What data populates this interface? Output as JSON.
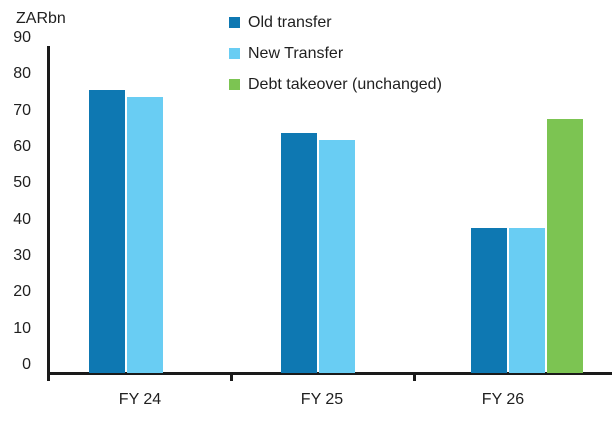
{
  "chart_data": {
    "type": "bar",
    "title": "",
    "ylabel": "ZARbn",
    "xlabel": "",
    "categories": [
      "FY 24",
      "FY 25",
      "FY 26"
    ],
    "series": [
      {
        "name": "Old transfer",
        "color": "#0e78b2",
        "values": [
          78,
          66,
          40
        ]
      },
      {
        "name": "New Transfer",
        "color": "#69cdf3",
        "values": [
          76,
          64,
          40
        ]
      },
      {
        "name": "Debt takeover (unchanged)",
        "color": "#7cc452",
        "values": [
          null,
          null,
          70
        ]
      }
    ],
    "ylim": [
      0,
      90
    ],
    "yticks": [
      0,
      10,
      20,
      30,
      40,
      50,
      60,
      70,
      80,
      90
    ],
    "grid": false,
    "legend_position": "top",
    "axis_color": "#1a1a1a"
  }
}
